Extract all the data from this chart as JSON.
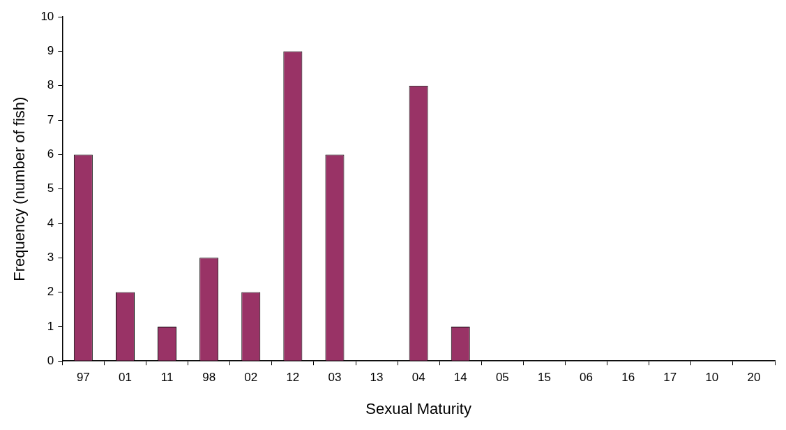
{
  "chart_data": {
    "type": "bar",
    "xlabel": "Sexual Maturity",
    "ylabel": "Frequency (number of fish)",
    "categories": [
      "97",
      "01",
      "11",
      "98",
      "02",
      "12",
      "03",
      "13",
      "04",
      "14",
      "05",
      "15",
      "06",
      "16",
      "17",
      "10",
      "20"
    ],
    "values": [
      6,
      2,
      1,
      3,
      2,
      9,
      6,
      0,
      8,
      1,
      0,
      0,
      0,
      0,
      0,
      0,
      0
    ],
    "color": "#993366",
    "ylim": [
      0,
      10
    ],
    "yticks": [
      0,
      1,
      2,
      3,
      4,
      5,
      6,
      7,
      8,
      9,
      10
    ],
    "grid": false,
    "legend": false
  }
}
